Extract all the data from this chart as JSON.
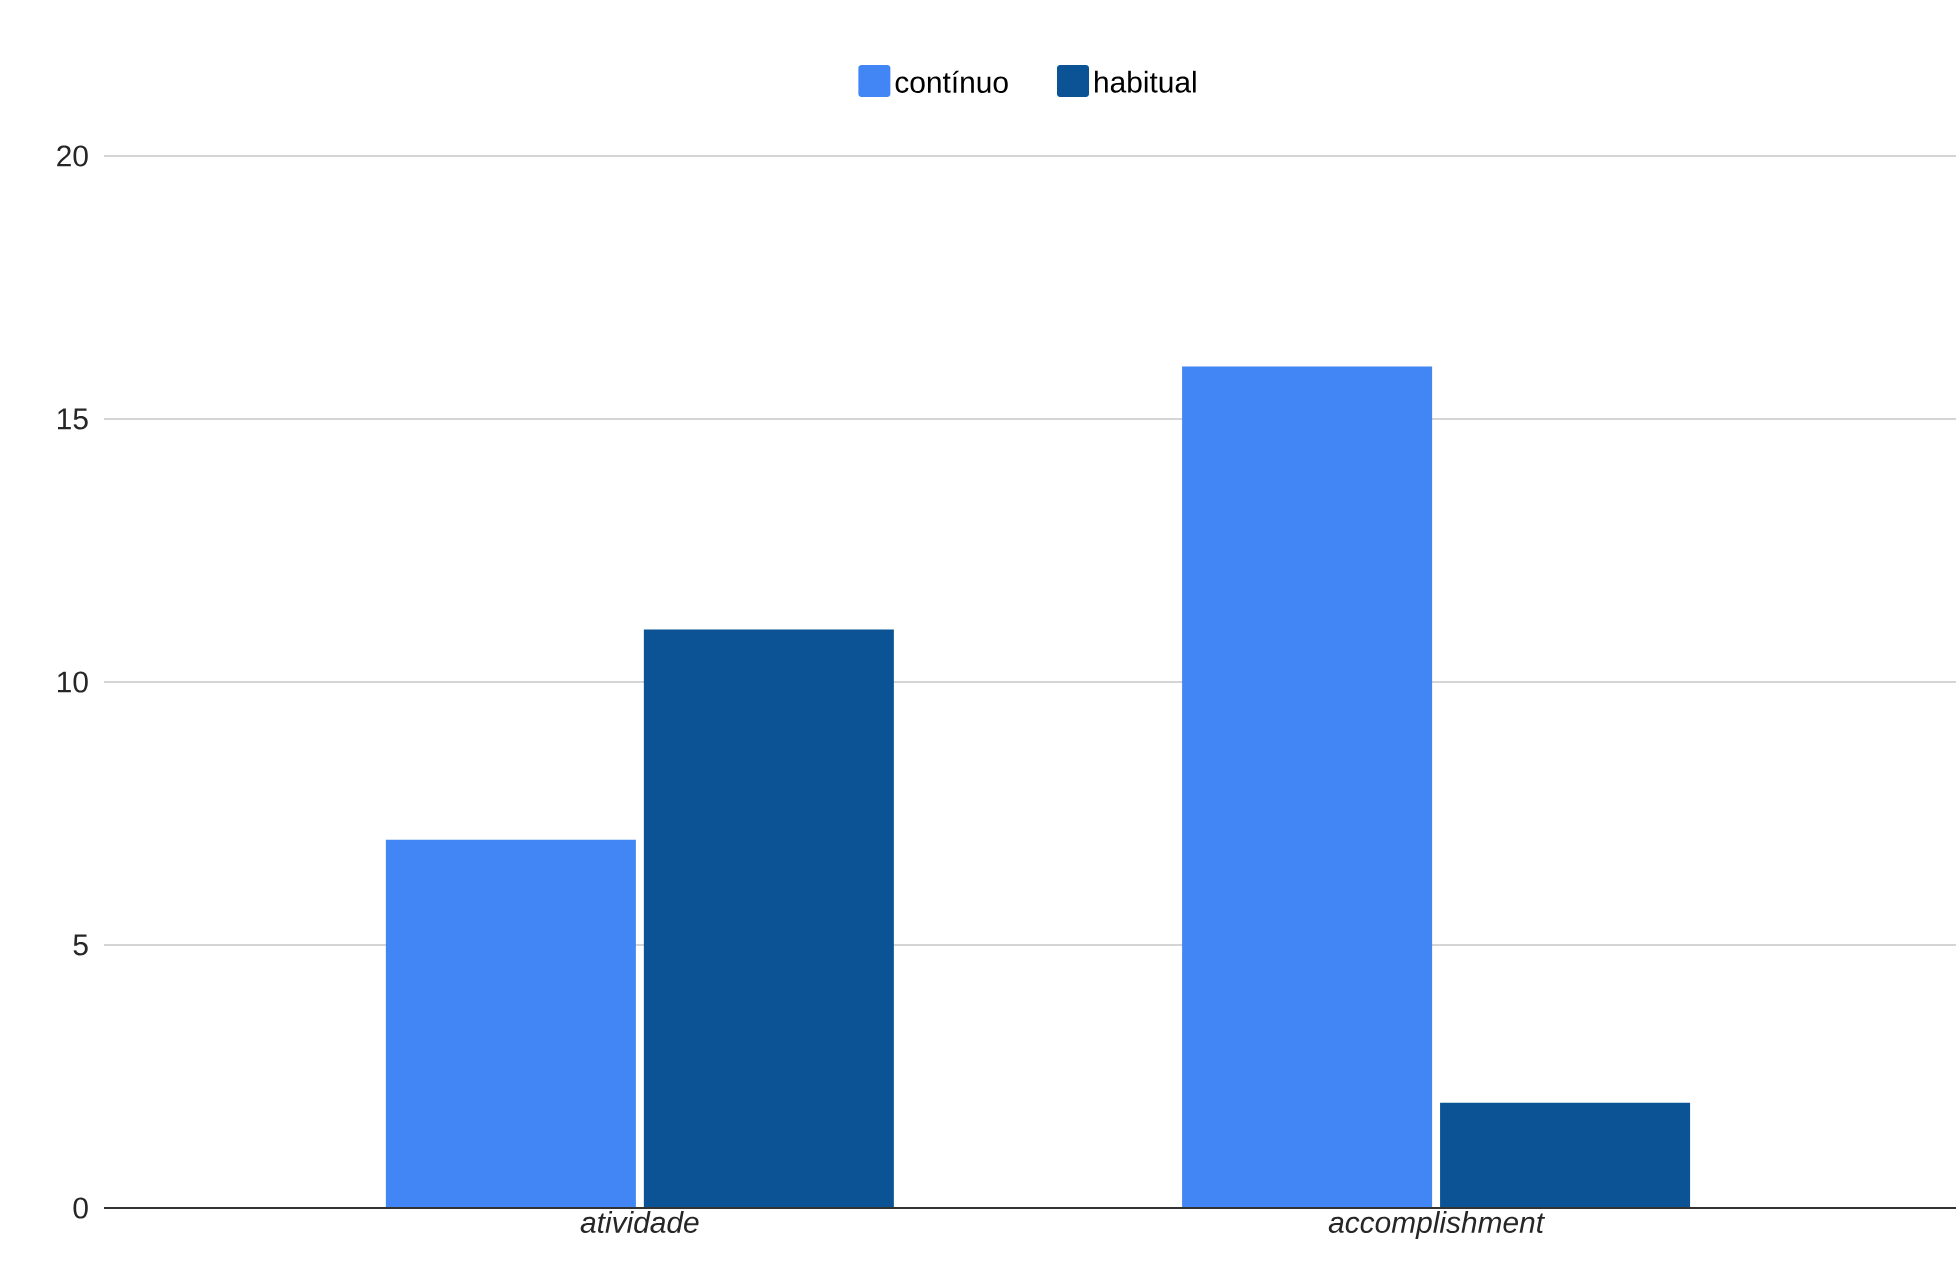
{
  "chart_data": {
    "type": "bar",
    "categories": [
      "atividade",
      "accomplishment"
    ],
    "series": [
      {
        "name": "contínuo",
        "color": "#4285f4",
        "values": [
          7,
          16
        ]
      },
      {
        "name": "habitual",
        "color": "#0b5394",
        "values": [
          11,
          2
        ]
      }
    ],
    "ylim": [
      0,
      20
    ],
    "yticks": [
      0,
      5,
      10,
      15,
      20
    ],
    "grid": "y",
    "legend": "top"
  }
}
